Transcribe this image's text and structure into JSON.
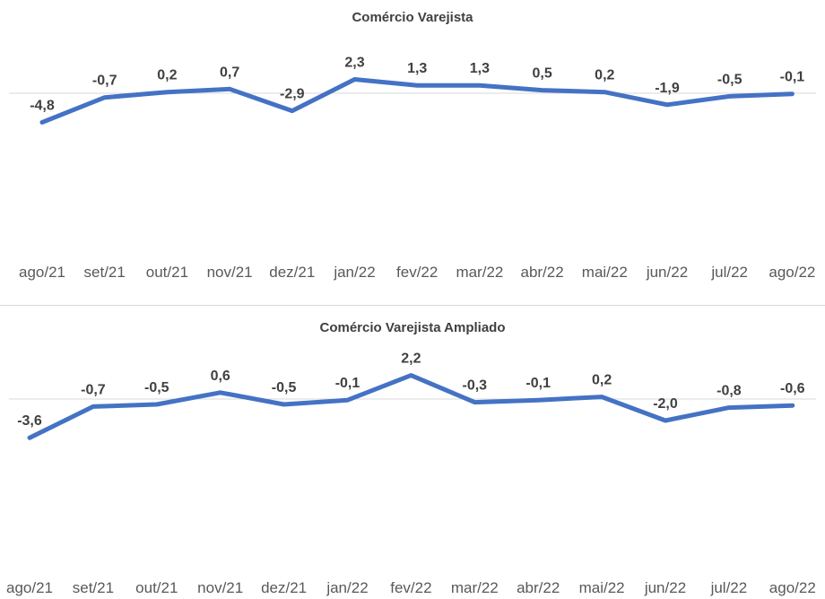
{
  "chart_data": [
    {
      "type": "line",
      "title": "Comércio Varejista",
      "categories": [
        "ago/21",
        "set/21",
        "out/21",
        "nov/21",
        "dez/21",
        "jan/22",
        "fev/22",
        "mar/22",
        "abr/22",
        "mai/22",
        "jun/22",
        "jul/22",
        "ago/22"
      ],
      "values": [
        -4.8,
        -0.7,
        0.2,
        0.7,
        -2.9,
        2.3,
        1.3,
        1.3,
        0.5,
        0.2,
        -1.9,
        -0.5,
        -0.1
      ],
      "value_labels": [
        "-4,8",
        "-0,7",
        "0,2",
        "0,7",
        "-2,9",
        "2,3",
        "1,3",
        "1,3",
        "0,5",
        "0,2",
        "-1,9",
        "-0,5",
        "-0,1"
      ],
      "xlabel": "",
      "ylabel": "",
      "line_color": "#4472c4",
      "grid": false,
      "legend": "none"
    },
    {
      "type": "line",
      "title": "Comércio Varejista Ampliado",
      "categories": [
        "ago/21",
        "set/21",
        "out/21",
        "nov/21",
        "dez/21",
        "jan/22",
        "fev/22",
        "mar/22",
        "abr/22",
        "mai/22",
        "jun/22",
        "jul/22",
        "ago/22"
      ],
      "values": [
        -3.6,
        -0.7,
        -0.5,
        0.6,
        -0.5,
        -0.1,
        2.2,
        -0.3,
        -0.1,
        0.2,
        -2.0,
        -0.8,
        -0.6
      ],
      "value_labels": [
        "-3,6",
        "-0,7",
        "-0,5",
        "0,6",
        "-0,5",
        "-0,1",
        "2,2",
        "-0,3",
        "-0,1",
        "0,2",
        "-2,0",
        "-0,8",
        "-0,6"
      ],
      "xlabel": "",
      "ylabel": "",
      "line_color": "#4472c4",
      "grid": false,
      "legend": "none"
    }
  ]
}
